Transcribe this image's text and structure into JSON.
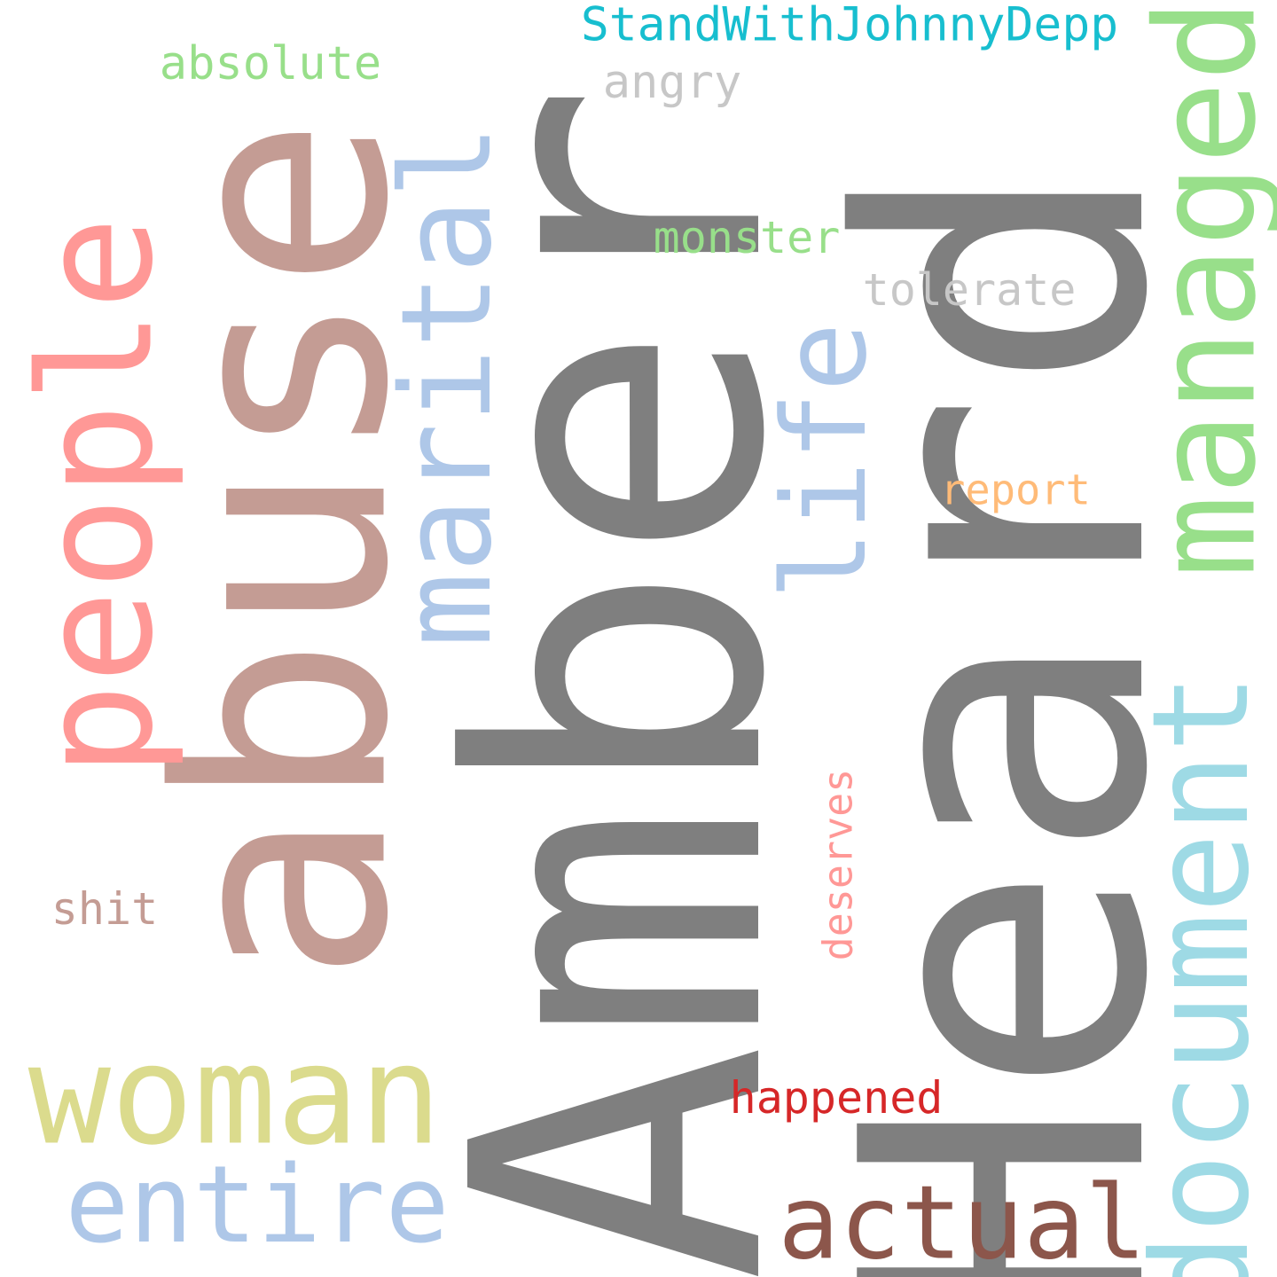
{
  "words": {
    "amber": {
      "text": "Amber",
      "color": "#7f7f7f"
    },
    "heard": {
      "text": "Heard",
      "color": "#7f7f7f"
    },
    "abuse": {
      "text": "abuse",
      "color": "#c49c94"
    },
    "people": {
      "text": "people",
      "color": "#ff9896"
    },
    "marital": {
      "text": "marital",
      "color": "#aec7e8"
    },
    "managed": {
      "text": "managed",
      "color": "#98df8a"
    },
    "document": {
      "text": "document",
      "color": "#9edae5"
    },
    "life": {
      "text": "life",
      "color": "#aec7e8"
    },
    "woman": {
      "text": "woman",
      "color": "#dbdb8d"
    },
    "entire": {
      "text": "entire",
      "color": "#aec7e8"
    },
    "actual": {
      "text": "actual",
      "color": "#8c564b"
    },
    "standwith": {
      "text": "StandWithJohnnyDepp",
      "color": "#17becf"
    },
    "absolute": {
      "text": "absolute",
      "color": "#98df8a"
    },
    "angry": {
      "text": "angry",
      "color": "#c7c7c7"
    },
    "monster": {
      "text": "monster",
      "color": "#98df8a"
    },
    "tolerate": {
      "text": "tolerate",
      "color": "#c7c7c7"
    },
    "report": {
      "text": "report",
      "color": "#ffbb78"
    },
    "deserves": {
      "text": "deserves",
      "color": "#ff9896"
    },
    "shit": {
      "text": "shit",
      "color": "#c49c94"
    },
    "happened": {
      "text": "happened",
      "color": "#d62728"
    }
  }
}
